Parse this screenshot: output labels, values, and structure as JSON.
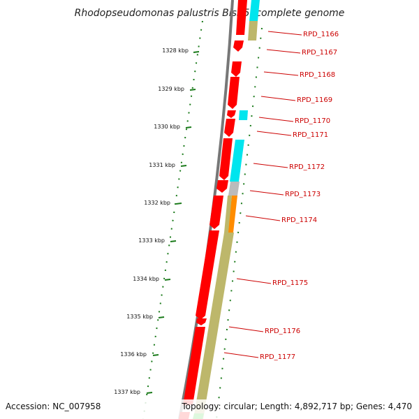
{
  "title": "Rhodopseudomonas palustris BisB5, complete genome",
  "footer": {
    "accession": "Accession: NC_007958",
    "topology": "Topology: circular; Length: 4,892,717 bp; Genes: 4,470"
  },
  "axis_ticks": [
    "1328 kbp",
    "1329 kbp",
    "1330 kbp",
    "1331 kbp",
    "1332 kbp",
    "1333 kbp",
    "1334 kbp",
    "1335 kbp",
    "1336 kbp",
    "1337 kbp"
  ],
  "genes": [
    "RPD_1166",
    "RPD_1167",
    "RPD_1168",
    "RPD_1169",
    "RPD_1170",
    "RPD_1171",
    "RPD_1172",
    "RPD_1173",
    "RPD_1174",
    "RPD_1175",
    "RPD_1176",
    "RPD_1177"
  ],
  "colors": {
    "backbone": "#777777",
    "cds": "#ff0000",
    "cog_cyan": "#00e5ee",
    "cog_khaki": "#bdb76b",
    "cog_orange": "#ff8c00",
    "cog_gray": "#bbbbbb",
    "tick": "#1a7a1a",
    "label": "#cc0000"
  }
}
